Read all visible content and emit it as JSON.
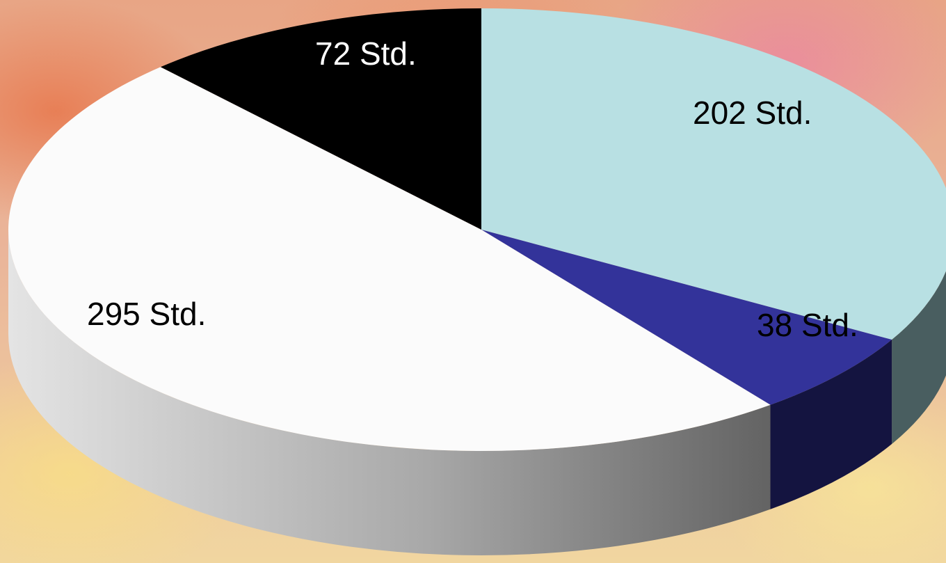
{
  "chart_data": {
    "type": "pie",
    "style": "3d",
    "slices": [
      {
        "label": "202 Std.",
        "value": 202,
        "top_color": "#b8e0e3",
        "side_color": "#495e60",
        "label_color": "#000000"
      },
      {
        "label": "38 Std.",
        "value": 38,
        "top_color": "#33339a",
        "side_color": "#141440",
        "label_color": "#000000"
      },
      {
        "label": "295 Std.",
        "value": 295,
        "top_color": "#fbfbfb",
        "side_color": "#9a9a9a",
        "label_color": "#000000"
      },
      {
        "label": "72 Std.",
        "value": 72,
        "top_color": "#000000",
        "side_color": "#000000",
        "label_color": "#ffffff"
      }
    ],
    "legend": "none"
  }
}
